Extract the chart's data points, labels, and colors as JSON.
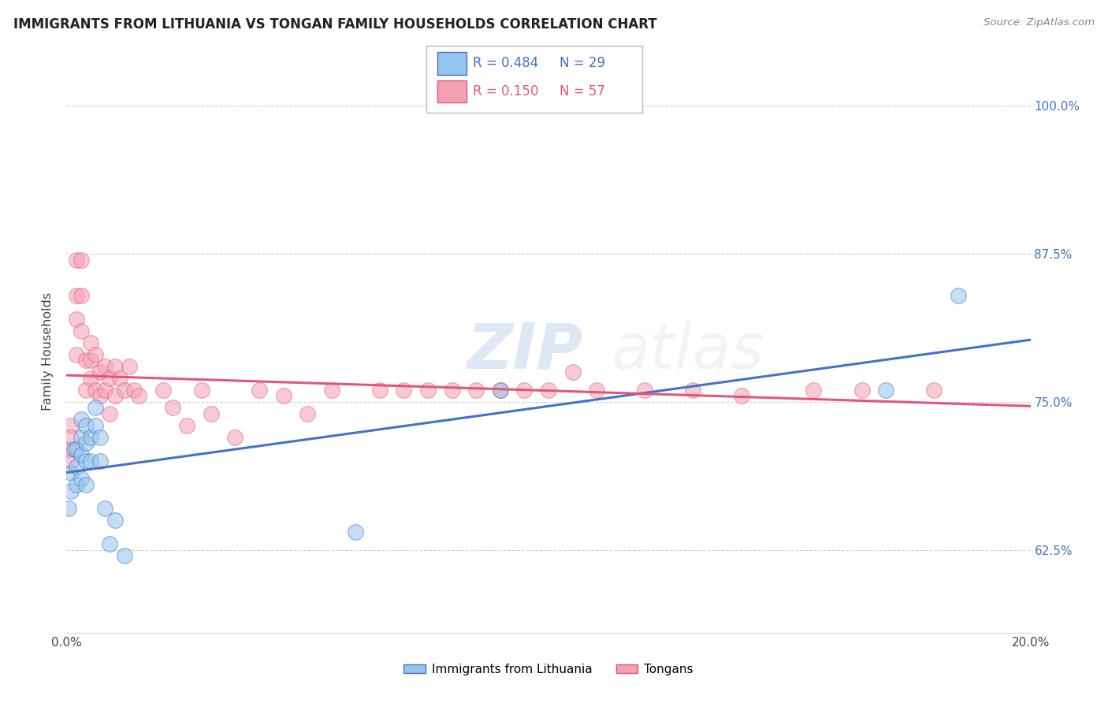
{
  "title": "IMMIGRANTS FROM LITHUANIA VS TONGAN FAMILY HOUSEHOLDS CORRELATION CHART",
  "source": "Source: ZipAtlas.com",
  "ylabel": "Family Households",
  "yticks": [
    "62.5%",
    "75.0%",
    "87.5%",
    "100.0%"
  ],
  "ytick_values": [
    0.625,
    0.75,
    0.875,
    1.0
  ],
  "xlim": [
    0.0,
    0.2
  ],
  "ylim": [
    0.555,
    1.03
  ],
  "legend_blue_r": "R = 0.484",
  "legend_blue_n": "N = 29",
  "legend_pink_r": "R = 0.150",
  "legend_pink_n": "N = 57",
  "label_blue": "Immigrants from Lithuania",
  "label_pink": "Tongans",
  "blue_color": "#95C5EE",
  "pink_color": "#F4A0B5",
  "blue_line_color": "#4472C4",
  "pink_line_color": "#E05878",
  "blue_x": [
    0.0005,
    0.001,
    0.001,
    0.0015,
    0.002,
    0.002,
    0.002,
    0.003,
    0.003,
    0.003,
    0.003,
    0.004,
    0.004,
    0.004,
    0.004,
    0.005,
    0.005,
    0.006,
    0.006,
    0.007,
    0.007,
    0.008,
    0.009,
    0.01,
    0.012,
    0.06,
    0.09,
    0.17,
    0.185
  ],
  "blue_y": [
    0.66,
    0.69,
    0.675,
    0.71,
    0.71,
    0.695,
    0.68,
    0.735,
    0.72,
    0.705,
    0.685,
    0.73,
    0.715,
    0.7,
    0.68,
    0.72,
    0.7,
    0.745,
    0.73,
    0.72,
    0.7,
    0.66,
    0.63,
    0.65,
    0.62,
    0.64,
    0.76,
    0.76,
    0.84
  ],
  "pink_x": [
    0.0005,
    0.001,
    0.001,
    0.001,
    0.002,
    0.002,
    0.002,
    0.002,
    0.003,
    0.003,
    0.003,
    0.004,
    0.004,
    0.005,
    0.005,
    0.005,
    0.006,
    0.006,
    0.007,
    0.007,
    0.008,
    0.008,
    0.009,
    0.009,
    0.01,
    0.01,
    0.011,
    0.012,
    0.013,
    0.014,
    0.015,
    0.02,
    0.022,
    0.025,
    0.028,
    0.03,
    0.035,
    0.04,
    0.045,
    0.05,
    0.055,
    0.065,
    0.07,
    0.075,
    0.08,
    0.085,
    0.09,
    0.095,
    0.1,
    0.105,
    0.11,
    0.12,
    0.13,
    0.14,
    0.155,
    0.165,
    0.18
  ],
  "pink_y": [
    0.71,
    0.73,
    0.72,
    0.7,
    0.87,
    0.84,
    0.82,
    0.79,
    0.87,
    0.84,
    0.81,
    0.785,
    0.76,
    0.8,
    0.785,
    0.77,
    0.79,
    0.76,
    0.775,
    0.755,
    0.78,
    0.76,
    0.77,
    0.74,
    0.78,
    0.755,
    0.77,
    0.76,
    0.78,
    0.76,
    0.755,
    0.76,
    0.745,
    0.73,
    0.76,
    0.74,
    0.72,
    0.76,
    0.755,
    0.74,
    0.76,
    0.76,
    0.76,
    0.76,
    0.76,
    0.76,
    0.76,
    0.76,
    0.76,
    0.775,
    0.76,
    0.76,
    0.76,
    0.755,
    0.76,
    0.76,
    0.76
  ]
}
